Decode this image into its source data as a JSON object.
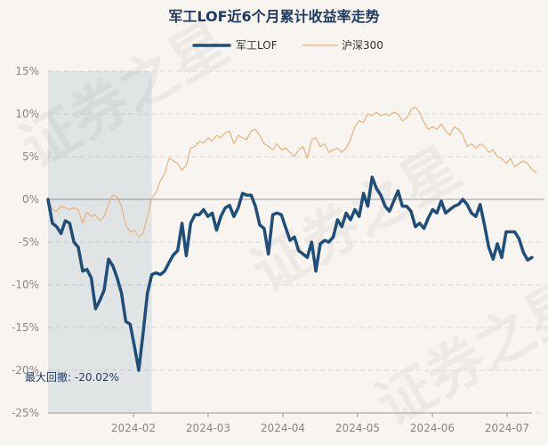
{
  "chart_data": {
    "type": "line",
    "title": "军工LOF近6个月累计收益率走势",
    "legend": [
      {
        "name": "军工LOF",
        "color": "#1f4e79"
      },
      {
        "name": "沪深300",
        "color": "#e8b27c"
      }
    ],
    "y_ticks": [
      "15%",
      "10%",
      "5%",
      "0%",
      "-5%",
      "-10%",
      "-15%",
      "-20%",
      "-25%"
    ],
    "ylim": [
      -25,
      15
    ],
    "x_ticks": [
      "2024-02",
      "2024-03",
      "2024-04",
      "2024-05",
      "2024-06",
      "2024-07"
    ],
    "max_drawdown_label": "最大回撤: -20.02%",
    "max_drawdown_range": [
      0,
      24
    ],
    "watermark": "证券之星",
    "series": [
      {
        "name": "军工LOF",
        "color": "#1f4e79",
        "values": [
          0.0,
          -2.8,
          -3.2,
          -4.0,
          -2.5,
          -2.8,
          -5.0,
          -5.6,
          -8.4,
          -8.2,
          -9.2,
          -12.8,
          -11.8,
          -10.6,
          -7.0,
          -7.8,
          -9.2,
          -11.0,
          -14.3,
          -14.6,
          -17.2,
          -20.0,
          -15.6,
          -11.0,
          -8.8,
          -8.6,
          -8.8,
          -8.4,
          -7.4,
          -6.5,
          -6.0,
          -2.8,
          -6.6,
          -2.8,
          -1.8,
          -1.8,
          -1.2,
          -2.0,
          -1.6,
          -3.6,
          -2.0,
          -1.0,
          -0.7,
          -2.0,
          -1.0,
          0.7,
          0.5,
          0.5,
          -0.8,
          -3.0,
          -3.4,
          -6.4,
          -1.8,
          -1.6,
          -1.8,
          -3.3,
          -4.8,
          -4.4,
          -6.0,
          -6.4,
          -6.8,
          -5.0,
          -8.4,
          -5.2,
          -4.8,
          -5.0,
          -4.4,
          -2.4,
          -3.2,
          -1.6,
          -2.4,
          -1.2,
          -2.0,
          0.7,
          -0.8,
          2.6,
          1.3,
          0.5,
          -0.8,
          -1.4,
          -0.2,
          1.0,
          -0.8,
          -0.8,
          -1.4,
          -3.2,
          -2.8,
          -3.4,
          -2.2,
          -1.2,
          -1.6,
          -0.2,
          -1.6,
          -1.2,
          -0.8,
          -0.6,
          0.0,
          -0.6,
          -1.6,
          -2.0,
          -0.6,
          -3.0,
          -5.6,
          -7.0,
          -5.2,
          -6.8,
          -3.8,
          -3.8,
          -3.8,
          -4.6,
          -6.2,
          -7.1,
          -6.8
        ]
      },
      {
        "name": "沪深300",
        "color": "#e8b27c",
        "values": [
          0.0,
          -1.2,
          -1.4,
          -0.8,
          -1.0,
          -1.2,
          -1.0,
          -1.2,
          -2.8,
          -1.5,
          -2.0,
          -1.8,
          -2.5,
          -2.0,
          -0.5,
          0.5,
          0.3,
          -0.8,
          -3.0,
          -3.8,
          -3.6,
          -4.4,
          -4.0,
          -2.0,
          0.2,
          0.8,
          2.2,
          3.0,
          4.8,
          4.5,
          4.2,
          3.4,
          4.0,
          6.0,
          6.2,
          6.8,
          6.6,
          7.2,
          6.8,
          7.5,
          7.2,
          7.8,
          8.0,
          6.5,
          7.5,
          7.2,
          7.0,
          8.0,
          8.2,
          7.5,
          6.5,
          6.2,
          5.8,
          6.5,
          5.8,
          6.0,
          5.5,
          5.0,
          5.8,
          6.2,
          4.8,
          7.0,
          7.2,
          6.2,
          6.5,
          5.5,
          5.8,
          6.0,
          5.5,
          6.0,
          7.0,
          8.5,
          9.2,
          9.0,
          10.0,
          9.8,
          10.2,
          9.8,
          10.0,
          9.8,
          10.2,
          10.0,
          9.2,
          9.5,
          10.5,
          10.8,
          10.2,
          9.0,
          8.2,
          8.5,
          8.2,
          8.8,
          8.0,
          7.5,
          8.5,
          8.2,
          7.5,
          6.2,
          6.5,
          6.0,
          6.5,
          6.2,
          5.5,
          5.8,
          5.0,
          4.8,
          4.2,
          4.8,
          3.8,
          4.2,
          4.5,
          4.2,
          3.5,
          3.1
        ]
      }
    ]
  }
}
